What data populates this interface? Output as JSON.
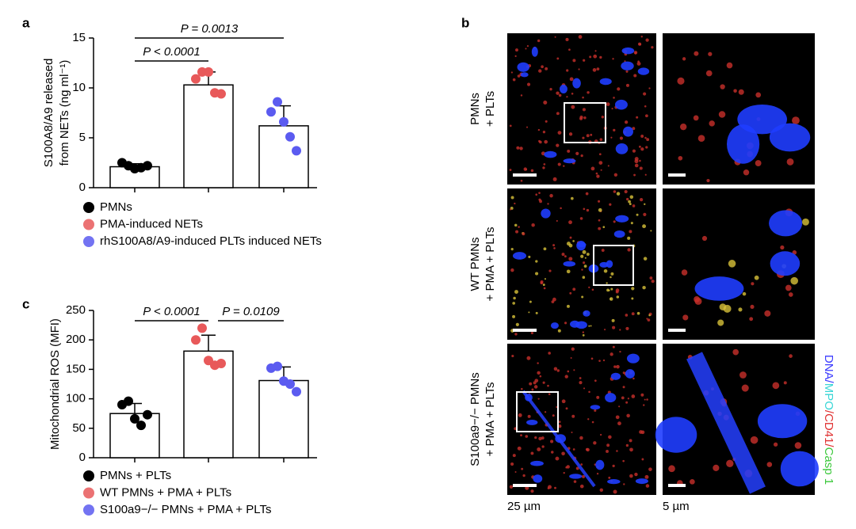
{
  "chart_data": [
    {
      "type": "bar",
      "panel": "a",
      "y_label": [
        "S100A8/A9 released",
        "from NETs (ng ml⁻¹)"
      ],
      "ylim": [
        0,
        15
      ],
      "yticks": [
        0,
        5,
        10,
        15
      ],
      "annotations": [
        "P = 0.0013",
        "P < 0.0001"
      ],
      "series": [
        {
          "name": "PMNs",
          "color": "#000000",
          "mean": 2.1,
          "error": 0.3,
          "values": [
            2.5,
            2.2,
            1.9,
            2.0,
            2.2
          ]
        },
        {
          "name": "PMA-induced NETs",
          "color": "#e8595a",
          "mean": 10.3,
          "error": 1.3,
          "values": [
            10.9,
            11.6,
            11.6,
            9.5,
            9.4
          ]
        },
        {
          "name": "rhS100A8/A9-induced PLTs induced NETs",
          "color": "#5b5bf0",
          "mean": 6.2,
          "error": 2.0,
          "values": [
            7.6,
            8.6,
            6.6,
            5.1,
            3.7
          ]
        }
      ]
    },
    {
      "type": "bar",
      "panel": "c",
      "y_label": [
        "Mitochondrial ROS (MFI)"
      ],
      "ylim": [
        0,
        250
      ],
      "yticks": [
        0,
        50,
        100,
        150,
        200,
        250
      ],
      "annotations": [
        "P < 0.0001",
        "P = 0.0109"
      ],
      "series": [
        {
          "name": "PMNs + PLTs",
          "color": "#000000",
          "mean": 75,
          "error": 17,
          "values": [
            90,
            96,
            66,
            55,
            73
          ]
        },
        {
          "name": "WT PMNs + PMA + PLTs",
          "color": "#e8595a",
          "mean": 181,
          "error": 27,
          "values": [
            200,
            220,
            165,
            157,
            160
          ]
        },
        {
          "name": "S100a9−/− PMNs + PMA + PLTs",
          "color": "#5b5bf0",
          "mean": 131,
          "error": 23,
          "values": [
            152,
            155,
            130,
            125,
            112
          ]
        }
      ]
    }
  ],
  "panel_b": {
    "panel": "b",
    "row_labels": [
      [
        "PMNs",
        "+ PLTs"
      ],
      [
        "WT PMNs",
        "+ PMA + PLTs"
      ],
      [
        "S100a9−/− PMNs",
        "+ PMA + PLTs"
      ]
    ],
    "channels": [
      {
        "text": "DNA",
        "color": "#3a3aff"
      },
      {
        "text": "/",
        "color": "#3a3aff"
      },
      {
        "text": "MPO",
        "color": "#39d6d6"
      },
      {
        "text": "/",
        "color": "#e03030"
      },
      {
        "text": "CD41",
        "color": "#e03030"
      },
      {
        "text": "/",
        "color": "#e03030"
      },
      {
        "text": "Casp 1",
        "color": "#3ac83a"
      }
    ],
    "scale_labels": [
      "25 µm",
      "5 µm"
    ]
  }
}
